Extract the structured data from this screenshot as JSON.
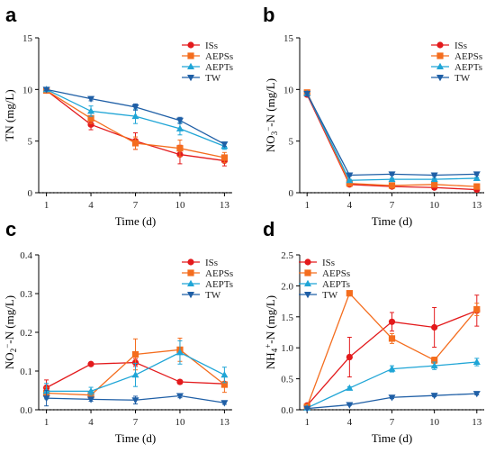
{
  "chart_data": [
    {
      "panel": "a",
      "type": "line",
      "xlabel": "Time (d)",
      "ylabel": "TN (mg/L)",
      "xlim": [
        1,
        13
      ],
      "ylim": [
        0,
        15
      ],
      "x_ticks": [
        1,
        4,
        7,
        10,
        13
      ],
      "y_ticks": [
        0,
        5,
        10,
        15
      ],
      "legend": "top-right",
      "series": [
        {
          "name": "ISs",
          "color": "#e31a1c",
          "marker": "circle",
          "x": [
            1,
            4,
            7,
            10,
            13
          ],
          "values": [
            9.9,
            6.6,
            5.0,
            3.7,
            3.1
          ],
          "err": [
            0.2,
            0.5,
            0.8,
            0.9,
            0.5
          ]
        },
        {
          "name": "AEPSs",
          "color": "#f46d1e",
          "marker": "square",
          "x": [
            1,
            4,
            7,
            10,
            13
          ],
          "values": [
            9.9,
            7.2,
            4.8,
            4.3,
            3.4
          ],
          "err": [
            0.2,
            0.5,
            0.6,
            0.8,
            0.5
          ]
        },
        {
          "name": "AEPTs",
          "color": "#1fa5d6",
          "marker": "triangle",
          "x": [
            1,
            4,
            7,
            10,
            13
          ],
          "values": [
            10.0,
            7.9,
            7.4,
            6.2,
            4.5
          ],
          "err": [
            0.2,
            0.5,
            0.7,
            0.6,
            0.3
          ]
        },
        {
          "name": "TW",
          "color": "#1f5fa6",
          "marker": "tri-down",
          "x": [
            1,
            4,
            7,
            10,
            13
          ],
          "values": [
            10.0,
            9.1,
            8.3,
            7.0,
            4.7
          ],
          "err": [
            0.1,
            0.2,
            0.3,
            0.3,
            0.2
          ]
        }
      ]
    },
    {
      "panel": "b",
      "type": "line",
      "xlabel": "Time (d)",
      "ylabel": "NO₃⁻-N (mg/L)",
      "xlim": [
        1,
        13
      ],
      "ylim": [
        0,
        15
      ],
      "x_ticks": [
        1,
        4,
        7,
        10,
        13
      ],
      "y_ticks": [
        0,
        5,
        10,
        15
      ],
      "legend": "top-right",
      "series": [
        {
          "name": "ISs",
          "color": "#e31a1c",
          "marker": "circle",
          "x": [
            1,
            4,
            7,
            10,
            13
          ],
          "values": [
            9.5,
            0.8,
            0.6,
            0.5,
            0.3
          ],
          "err": [
            0.2,
            0.1,
            0.1,
            0.1,
            0.1
          ]
        },
        {
          "name": "AEPSs",
          "color": "#f46d1e",
          "marker": "square",
          "x": [
            1,
            4,
            7,
            10,
            13
          ],
          "values": [
            9.7,
            0.9,
            0.7,
            0.8,
            0.6
          ],
          "err": [
            0.2,
            0.1,
            0.1,
            0.1,
            0.1
          ]
        },
        {
          "name": "AEPTs",
          "color": "#1fa5d6",
          "marker": "triangle",
          "x": [
            1,
            4,
            7,
            10,
            13
          ],
          "values": [
            9.6,
            1.2,
            1.3,
            1.3,
            1.4
          ],
          "err": [
            0.2,
            0.1,
            0.1,
            0.1,
            0.1
          ]
        },
        {
          "name": "TW",
          "color": "#1f5fa6",
          "marker": "tri-down",
          "x": [
            1,
            4,
            7,
            10,
            13
          ],
          "values": [
            9.6,
            1.7,
            1.8,
            1.7,
            1.8
          ],
          "err": [
            0.2,
            0.1,
            0.1,
            0.1,
            0.1
          ]
        }
      ]
    },
    {
      "panel": "c",
      "type": "line",
      "xlabel": "Time (d)",
      "ylabel": "NO₂⁻-N (mg/L)",
      "xlim": [
        1,
        13
      ],
      "ylim": [
        0,
        0.4
      ],
      "x_ticks": [
        1,
        4,
        7,
        10,
        13
      ],
      "y_ticks": [
        0.0,
        0.1,
        0.2,
        0.3,
        0.4
      ],
      "legend": "top-right",
      "series": [
        {
          "name": "ISs",
          "color": "#e31a1c",
          "marker": "circle",
          "x": [
            1,
            4,
            7,
            10,
            13
          ],
          "values": [
            0.057,
            0.118,
            0.122,
            0.072,
            0.067
          ],
          "err": [
            0.02,
            0.004,
            0.01,
            0.004,
            0.004
          ]
        },
        {
          "name": "AEPSs",
          "color": "#f46d1e",
          "marker": "square",
          "x": [
            1,
            4,
            7,
            10,
            13
          ],
          "values": [
            0.043,
            0.038,
            0.143,
            0.155,
            0.065
          ],
          "err": [
            0.015,
            0.01,
            0.04,
            0.03,
            0.02
          ]
        },
        {
          "name": "AEPTs",
          "color": "#1fa5d6",
          "marker": "triangle",
          "x": [
            1,
            4,
            7,
            10,
            13
          ],
          "values": [
            0.048,
            0.048,
            0.09,
            0.148,
            0.09
          ],
          "err": [
            0.02,
            0.01,
            0.03,
            0.03,
            0.02
          ]
        },
        {
          "name": "TW",
          "color": "#1f5fa6",
          "marker": "tri-down",
          "x": [
            1,
            4,
            7,
            10,
            13
          ],
          "values": [
            0.03,
            0.027,
            0.025,
            0.036,
            0.018
          ],
          "err": [
            0.02,
            0.005,
            0.01,
            0.005,
            0.004
          ]
        }
      ]
    },
    {
      "panel": "d",
      "type": "line",
      "xlabel": "Time (d)",
      "ylabel": "NH₄⁺-N (mg/L)",
      "xlim": [
        1,
        13
      ],
      "ylim": [
        0,
        2.5
      ],
      "x_ticks": [
        1,
        4,
        7,
        10,
        13
      ],
      "y_ticks": [
        0.0,
        0.5,
        1.0,
        1.5,
        2.0,
        2.5
      ],
      "legend": "top-left",
      "series": [
        {
          "name": "ISs",
          "color": "#e31a1c",
          "marker": "circle",
          "x": [
            1,
            4,
            7,
            10,
            13
          ],
          "values": [
            0.07,
            0.85,
            1.42,
            1.33,
            1.6
          ],
          "err": [
            0.02,
            0.32,
            0.15,
            0.32,
            0.25
          ]
        },
        {
          "name": "AEPSs",
          "color": "#f46d1e",
          "marker": "square",
          "x": [
            1,
            4,
            7,
            10,
            13
          ],
          "values": [
            0.05,
            1.88,
            1.15,
            0.8,
            1.62
          ],
          "err": [
            0.02,
            0.02,
            0.08,
            0.05,
            0.1
          ]
        },
        {
          "name": "AEPTs",
          "color": "#1fa5d6",
          "marker": "triangle",
          "x": [
            1,
            4,
            7,
            10,
            13
          ],
          "values": [
            0.03,
            0.35,
            0.66,
            0.71,
            0.77
          ],
          "err": [
            0.01,
            0.02,
            0.05,
            0.06,
            0.06
          ]
        },
        {
          "name": "TW",
          "color": "#1f5fa6",
          "marker": "tri-down",
          "x": [
            1,
            4,
            7,
            10,
            13
          ],
          "values": [
            0.02,
            0.08,
            0.2,
            0.23,
            0.26
          ],
          "err": [
            0.01,
            0.01,
            0.02,
            0.02,
            0.02
          ]
        }
      ]
    }
  ]
}
